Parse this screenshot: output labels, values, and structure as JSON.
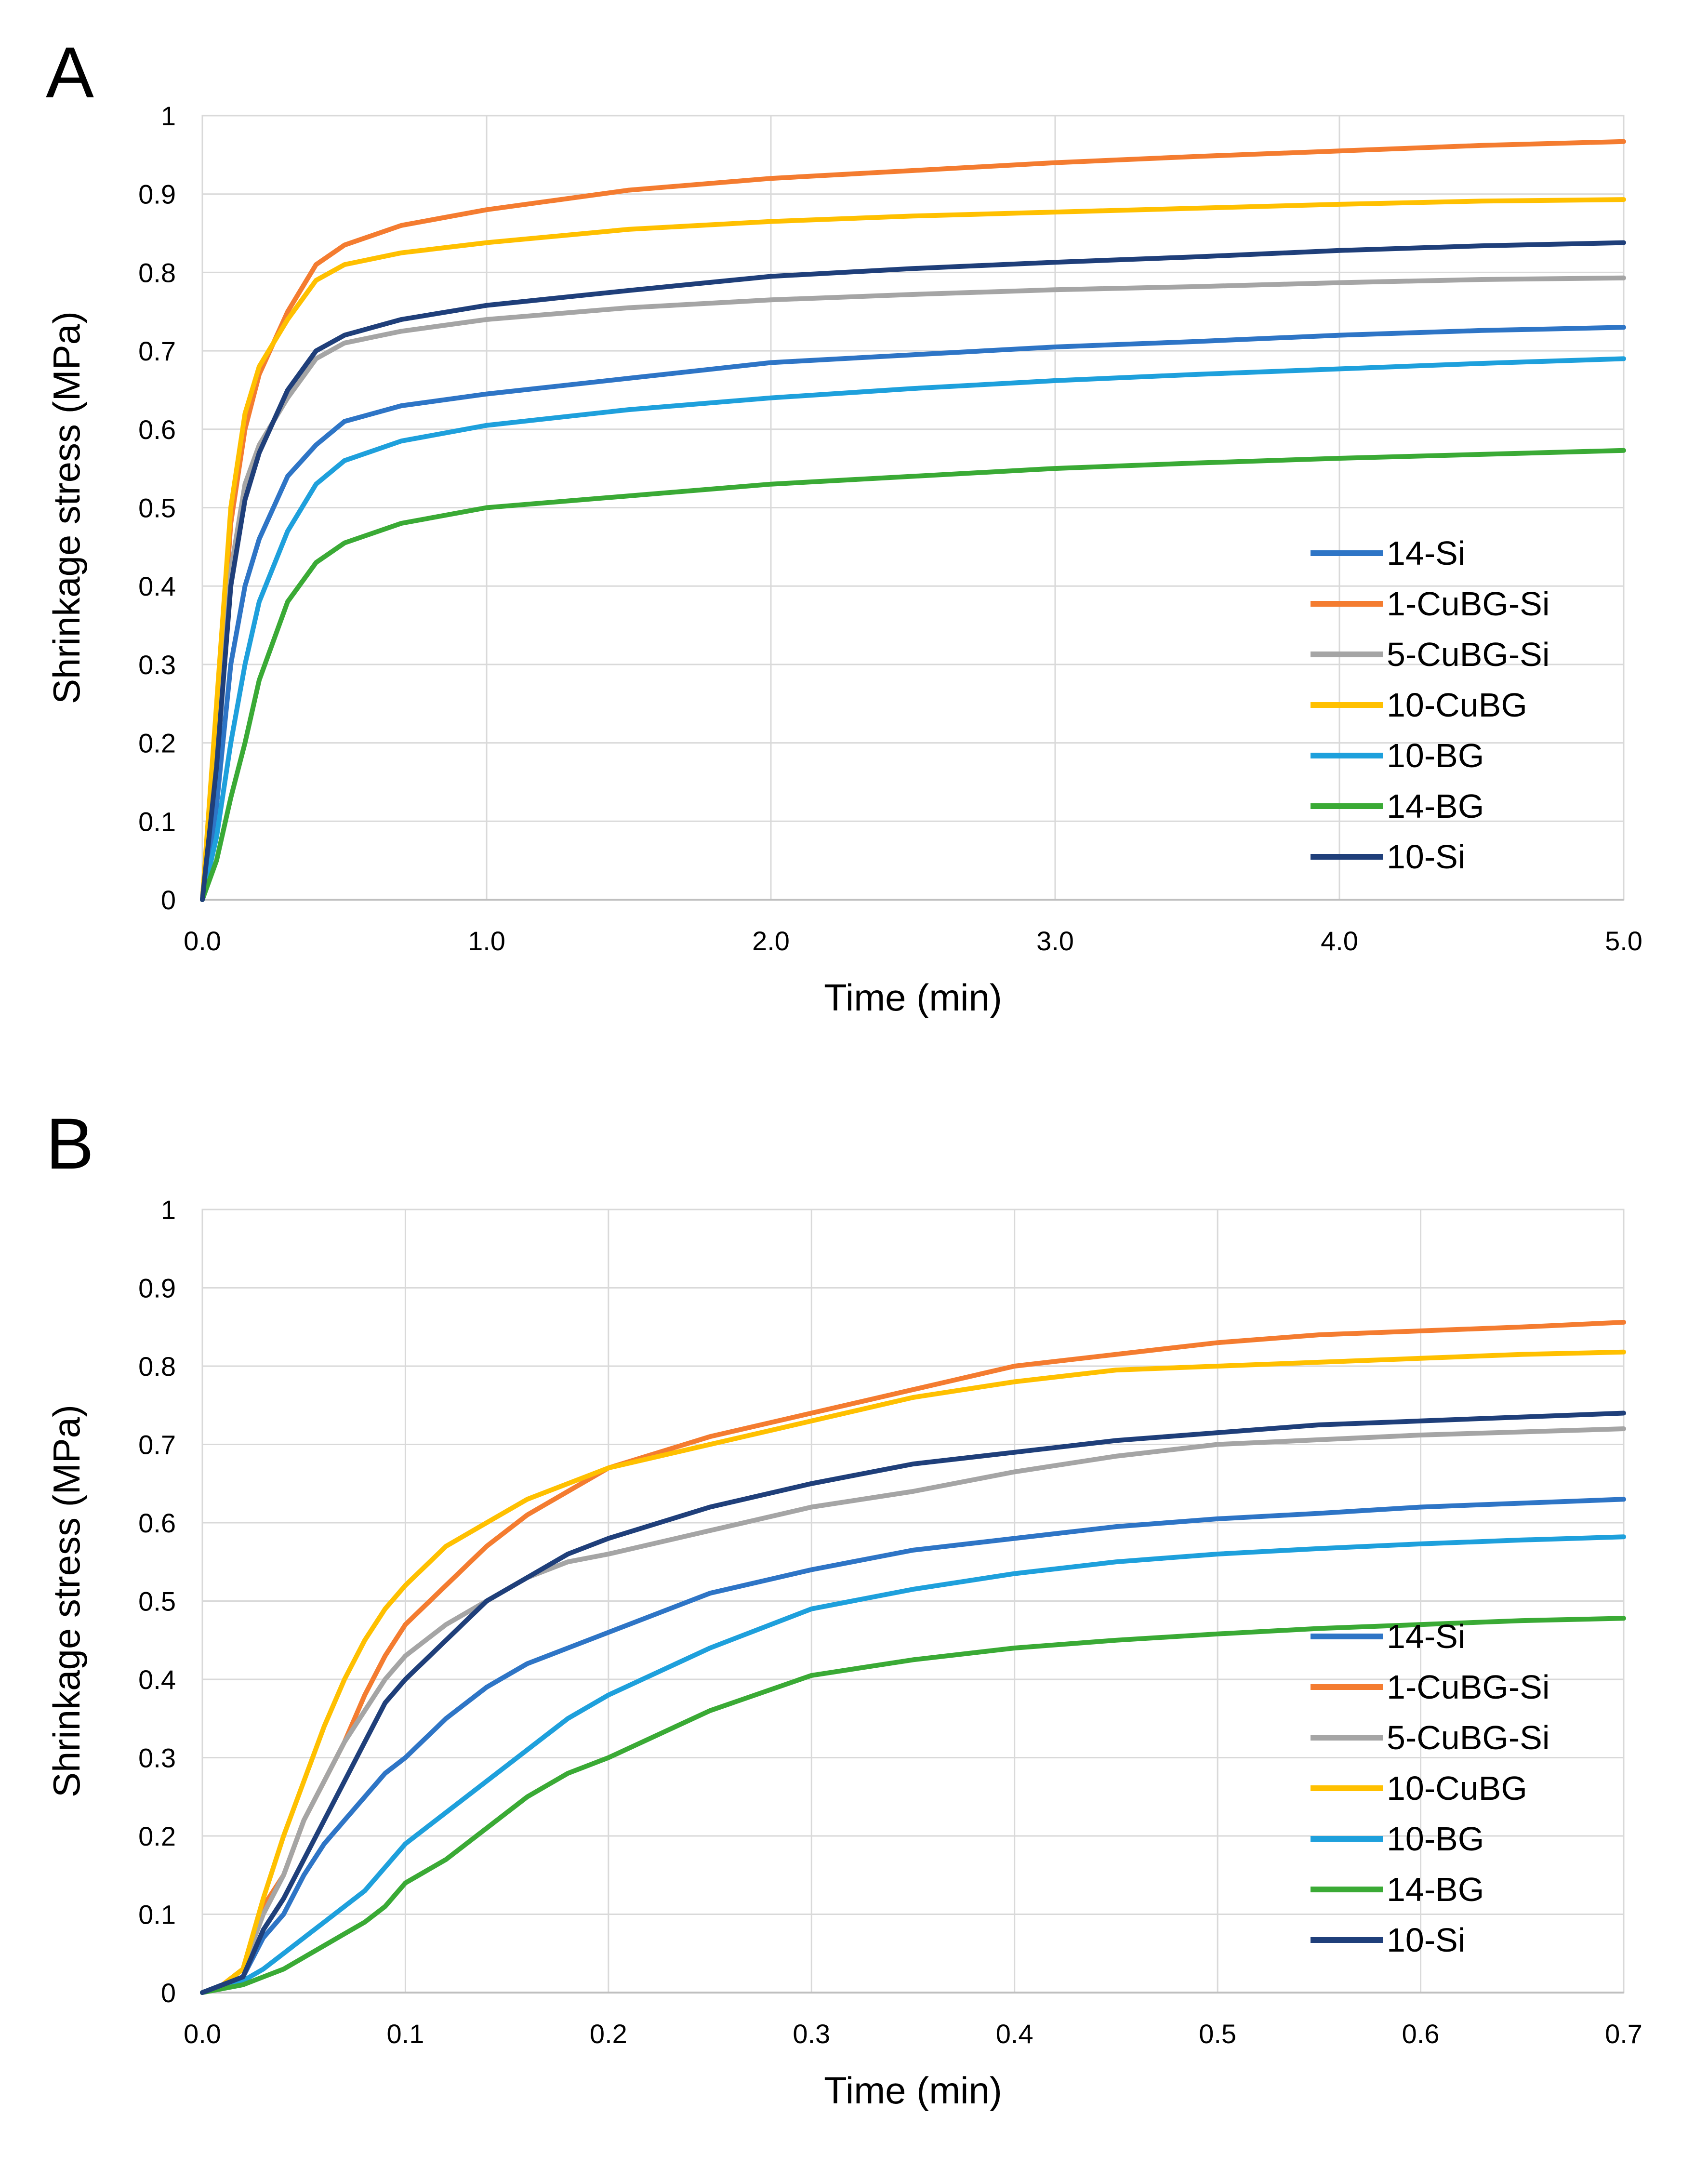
{
  "chart_data": [
    {
      "type": "line",
      "panel_label": "A",
      "xlabel": "Time (min)",
      "ylabel": "Shrinkage stress (MPa)",
      "xlim": [
        0,
        5
      ],
      "ylim": [
        0,
        1
      ],
      "xticks": [
        "0.0",
        "1.0",
        "2.0",
        "3.0",
        "4.0",
        "5.0"
      ],
      "yticks": [
        "0",
        "0.1",
        "0.2",
        "0.3",
        "0.4",
        "0.5",
        "0.6",
        "0.7",
        "0.8",
        "0.9",
        "1"
      ],
      "grid": true,
      "legend_position": "bottom-right",
      "series": [
        {
          "name": "14-Si",
          "color": "#2e75c6",
          "x": [
            0,
            0.05,
            0.1,
            0.15,
            0.2,
            0.3,
            0.4,
            0.5,
            0.7,
            1.0,
            1.5,
            2.0,
            2.5,
            3.0,
            3.5,
            4.0,
            4.5,
            5.0
          ],
          "y": [
            0,
            0.12,
            0.3,
            0.4,
            0.46,
            0.54,
            0.58,
            0.61,
            0.63,
            0.645,
            0.665,
            0.685,
            0.695,
            0.705,
            0.712,
            0.72,
            0.726,
            0.73
          ]
        },
        {
          "name": "1-CuBG-Si",
          "color": "#f47c30",
          "x": [
            0,
            0.05,
            0.1,
            0.15,
            0.2,
            0.3,
            0.4,
            0.5,
            0.7,
            1.0,
            1.5,
            2.0,
            2.5,
            3.0,
            3.5,
            4.0,
            4.5,
            5.0
          ],
          "y": [
            0,
            0.22,
            0.48,
            0.6,
            0.67,
            0.75,
            0.81,
            0.835,
            0.86,
            0.88,
            0.905,
            0.92,
            0.93,
            0.94,
            0.948,
            0.955,
            0.962,
            0.967
          ]
        },
        {
          "name": "5-CuBG-Si",
          "color": "#a5a5a5",
          "x": [
            0,
            0.05,
            0.1,
            0.15,
            0.2,
            0.3,
            0.4,
            0.5,
            0.7,
            1.0,
            1.5,
            2.0,
            2.5,
            3.0,
            3.5,
            4.0,
            4.5,
            5.0
          ],
          "y": [
            0,
            0.2,
            0.42,
            0.53,
            0.58,
            0.64,
            0.69,
            0.71,
            0.725,
            0.74,
            0.755,
            0.765,
            0.772,
            0.778,
            0.782,
            0.787,
            0.791,
            0.793
          ]
        },
        {
          "name": "10-CuBG",
          "color": "#ffc000",
          "x": [
            0,
            0.05,
            0.1,
            0.15,
            0.2,
            0.3,
            0.4,
            0.5,
            0.7,
            1.0,
            1.5,
            2.0,
            2.5,
            3.0,
            3.5,
            4.0,
            4.5,
            5.0
          ],
          "y": [
            0,
            0.25,
            0.5,
            0.62,
            0.68,
            0.74,
            0.79,
            0.81,
            0.825,
            0.838,
            0.855,
            0.865,
            0.872,
            0.877,
            0.882,
            0.887,
            0.891,
            0.893
          ]
        },
        {
          "name": "10-BG",
          "color": "#1ea0dc",
          "x": [
            0,
            0.05,
            0.1,
            0.15,
            0.2,
            0.3,
            0.4,
            0.5,
            0.7,
            1.0,
            1.5,
            2.0,
            2.5,
            3.0,
            3.5,
            4.0,
            4.5,
            5.0
          ],
          "y": [
            0,
            0.08,
            0.2,
            0.3,
            0.38,
            0.47,
            0.53,
            0.56,
            0.585,
            0.605,
            0.625,
            0.64,
            0.652,
            0.662,
            0.67,
            0.677,
            0.684,
            0.69
          ]
        },
        {
          "name": "14-BG",
          "color": "#3aaa35",
          "x": [
            0,
            0.05,
            0.1,
            0.15,
            0.2,
            0.3,
            0.4,
            0.5,
            0.7,
            1.0,
            1.5,
            2.0,
            2.5,
            3.0,
            3.5,
            4.0,
            4.5,
            5.0
          ],
          "y": [
            0,
            0.05,
            0.13,
            0.2,
            0.28,
            0.38,
            0.43,
            0.455,
            0.48,
            0.5,
            0.515,
            0.53,
            0.54,
            0.55,
            0.557,
            0.563,
            0.568,
            0.573
          ]
        },
        {
          "name": "10-Si",
          "color": "#1f3f7a",
          "x": [
            0,
            0.05,
            0.1,
            0.15,
            0.2,
            0.3,
            0.4,
            0.5,
            0.7,
            1.0,
            1.5,
            2.0,
            2.5,
            3.0,
            3.5,
            4.0,
            4.5,
            5.0
          ],
          "y": [
            0,
            0.17,
            0.4,
            0.51,
            0.57,
            0.65,
            0.7,
            0.72,
            0.74,
            0.758,
            0.777,
            0.795,
            0.805,
            0.813,
            0.82,
            0.828,
            0.834,
            0.838
          ]
        }
      ]
    },
    {
      "type": "line",
      "panel_label": "B",
      "xlabel": "Time (min)",
      "ylabel": "Shrinkage stress (MPa)",
      "xlim": [
        0,
        0.7
      ],
      "ylim": [
        0,
        1
      ],
      "xticks": [
        "0.0",
        "0.1",
        "0.2",
        "0.3",
        "0.4",
        "0.5",
        "0.6",
        "0.7"
      ],
      "yticks": [
        "0",
        "0.1",
        "0.2",
        "0.3",
        "0.4",
        "0.5",
        "0.6",
        "0.7",
        "0.8",
        "0.9",
        "1"
      ],
      "grid": true,
      "legend_position": "bottom-right",
      "series": [
        {
          "name": "14-Si",
          "color": "#2e75c6",
          "x": [
            0,
            0.01,
            0.02,
            0.03,
            0.04,
            0.05,
            0.06,
            0.07,
            0.08,
            0.09,
            0.1,
            0.12,
            0.14,
            0.16,
            0.18,
            0.2,
            0.25,
            0.3,
            0.35,
            0.4,
            0.45,
            0.5,
            0.55,
            0.6,
            0.65,
            0.7
          ],
          "y": [
            0,
            0.01,
            0.02,
            0.07,
            0.1,
            0.15,
            0.19,
            0.22,
            0.25,
            0.28,
            0.3,
            0.35,
            0.39,
            0.42,
            0.44,
            0.46,
            0.51,
            0.54,
            0.565,
            0.58,
            0.595,
            0.605,
            0.612,
            0.62,
            0.625,
            0.63
          ]
        },
        {
          "name": "1-CuBG-Si",
          "color": "#f47c30",
          "x": [
            0,
            0.01,
            0.02,
            0.03,
            0.04,
            0.05,
            0.06,
            0.07,
            0.08,
            0.09,
            0.1,
            0.12,
            0.14,
            0.16,
            0.18,
            0.2,
            0.25,
            0.3,
            0.35,
            0.4,
            0.45,
            0.5,
            0.55,
            0.6,
            0.65,
            0.7
          ],
          "y": [
            0,
            0.01,
            0.03,
            0.11,
            0.15,
            0.22,
            0.27,
            0.32,
            0.38,
            0.43,
            0.47,
            0.52,
            0.57,
            0.61,
            0.64,
            0.67,
            0.71,
            0.74,
            0.77,
            0.8,
            0.815,
            0.83,
            0.84,
            0.845,
            0.85,
            0.856
          ]
        },
        {
          "name": "5-CuBG-Si",
          "color": "#a5a5a5",
          "x": [
            0,
            0.01,
            0.02,
            0.03,
            0.04,
            0.05,
            0.06,
            0.07,
            0.08,
            0.09,
            0.1,
            0.12,
            0.14,
            0.16,
            0.18,
            0.2,
            0.25,
            0.3,
            0.35,
            0.4,
            0.45,
            0.5,
            0.55,
            0.6,
            0.65,
            0.7
          ],
          "y": [
            0,
            0.01,
            0.03,
            0.1,
            0.15,
            0.22,
            0.27,
            0.32,
            0.36,
            0.4,
            0.43,
            0.47,
            0.5,
            0.53,
            0.55,
            0.56,
            0.59,
            0.62,
            0.64,
            0.665,
            0.685,
            0.7,
            0.706,
            0.712,
            0.716,
            0.72
          ]
        },
        {
          "name": "10-CuBG",
          "color": "#ffc000",
          "x": [
            0,
            0.01,
            0.02,
            0.03,
            0.04,
            0.05,
            0.06,
            0.07,
            0.08,
            0.09,
            0.1,
            0.12,
            0.14,
            0.16,
            0.18,
            0.2,
            0.25,
            0.3,
            0.35,
            0.4,
            0.45,
            0.5,
            0.55,
            0.6,
            0.65,
            0.7
          ],
          "y": [
            0,
            0.01,
            0.03,
            0.12,
            0.2,
            0.27,
            0.34,
            0.4,
            0.45,
            0.49,
            0.52,
            0.57,
            0.6,
            0.63,
            0.65,
            0.67,
            0.7,
            0.73,
            0.76,
            0.78,
            0.795,
            0.8,
            0.805,
            0.81,
            0.815,
            0.818
          ]
        },
        {
          "name": "10-BG",
          "color": "#1ea0dc",
          "x": [
            0,
            0.01,
            0.02,
            0.03,
            0.04,
            0.05,
            0.06,
            0.07,
            0.08,
            0.09,
            0.1,
            0.12,
            0.14,
            0.16,
            0.18,
            0.2,
            0.25,
            0.3,
            0.35,
            0.4,
            0.45,
            0.5,
            0.55,
            0.6,
            0.65,
            0.7
          ],
          "y": [
            0,
            0.01,
            0.015,
            0.03,
            0.05,
            0.07,
            0.09,
            0.11,
            0.13,
            0.16,
            0.19,
            0.23,
            0.27,
            0.31,
            0.35,
            0.38,
            0.44,
            0.49,
            0.515,
            0.535,
            0.55,
            0.56,
            0.567,
            0.573,
            0.578,
            0.582
          ]
        },
        {
          "name": "14-BG",
          "color": "#3aaa35",
          "x": [
            0,
            0.01,
            0.02,
            0.03,
            0.04,
            0.05,
            0.06,
            0.07,
            0.08,
            0.09,
            0.1,
            0.12,
            0.14,
            0.16,
            0.18,
            0.2,
            0.25,
            0.3,
            0.35,
            0.4,
            0.45,
            0.5,
            0.55,
            0.6,
            0.65,
            0.7
          ],
          "y": [
            0,
            0.005,
            0.01,
            0.02,
            0.03,
            0.045,
            0.06,
            0.075,
            0.09,
            0.11,
            0.14,
            0.17,
            0.21,
            0.25,
            0.28,
            0.3,
            0.36,
            0.405,
            0.425,
            0.44,
            0.45,
            0.458,
            0.465,
            0.47,
            0.475,
            0.478
          ]
        },
        {
          "name": "10-Si",
          "color": "#1f3f7a",
          "x": [
            0,
            0.01,
            0.02,
            0.03,
            0.04,
            0.05,
            0.06,
            0.07,
            0.08,
            0.09,
            0.1,
            0.12,
            0.14,
            0.16,
            0.18,
            0.2,
            0.25,
            0.3,
            0.35,
            0.4,
            0.45,
            0.5,
            0.55,
            0.6,
            0.65,
            0.7
          ],
          "y": [
            0,
            0.01,
            0.02,
            0.08,
            0.12,
            0.17,
            0.22,
            0.27,
            0.32,
            0.37,
            0.4,
            0.45,
            0.5,
            0.53,
            0.56,
            0.58,
            0.62,
            0.65,
            0.675,
            0.69,
            0.705,
            0.715,
            0.725,
            0.73,
            0.735,
            0.74
          ]
        }
      ]
    }
  ]
}
